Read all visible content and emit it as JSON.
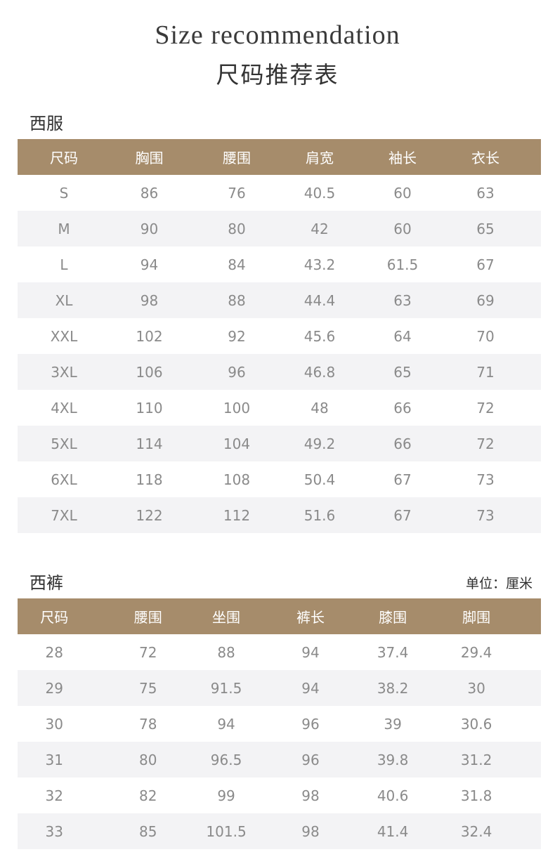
{
  "header": {
    "title_en": "Size recommendation",
    "title_zh": "尺码推荐表"
  },
  "jacket": {
    "label": "西服",
    "columns": [
      "尺码",
      "胸围",
      "腰围",
      "肩宽",
      "袖长",
      "衣长"
    ],
    "rows": [
      [
        "S",
        "86",
        "76",
        "40.5",
        "60",
        "63"
      ],
      [
        "M",
        "90",
        "80",
        "42",
        "60",
        "65"
      ],
      [
        "L",
        "94",
        "84",
        "43.2",
        "61.5",
        "67"
      ],
      [
        "XL",
        "98",
        "88",
        "44.4",
        "63",
        "69"
      ],
      [
        "XXL",
        "102",
        "92",
        "45.6",
        "64",
        "70"
      ],
      [
        "3XL",
        "106",
        "96",
        "46.8",
        "65",
        "71"
      ],
      [
        "4XL",
        "110",
        "100",
        "48",
        "66",
        "72"
      ],
      [
        "5XL",
        "114",
        "104",
        "49.2",
        "66",
        "72"
      ],
      [
        "6XL",
        "118",
        "108",
        "50.4",
        "67",
        "73"
      ],
      [
        "7XL",
        "122",
        "112",
        "51.6",
        "67",
        "73"
      ]
    ]
  },
  "trousers": {
    "label": "西裤",
    "unit": "单位：厘米",
    "columns": [
      "尺码",
      "腰围",
      "坐围",
      "裤长",
      "膝围",
      "脚围"
    ],
    "rows": [
      [
        "28",
        "72",
        "88",
        "94",
        "37.4",
        "29.4"
      ],
      [
        "29",
        "75",
        "91.5",
        "94",
        "38.2",
        "30"
      ],
      [
        "30",
        "78",
        "94",
        "96",
        "39",
        "30.6"
      ],
      [
        "31",
        "80",
        "96.5",
        "96",
        "39.8",
        "31.2"
      ],
      [
        "32",
        "82",
        "99",
        "98",
        "40.6",
        "31.8"
      ],
      [
        "33",
        "85",
        "101.5",
        "98",
        "41.4",
        "32.4"
      ]
    ]
  },
  "colors": {
    "header_bg": "#a68c6b",
    "alt_row_bg": "#f3f3f5",
    "cell_text": "#8a8a8a"
  }
}
